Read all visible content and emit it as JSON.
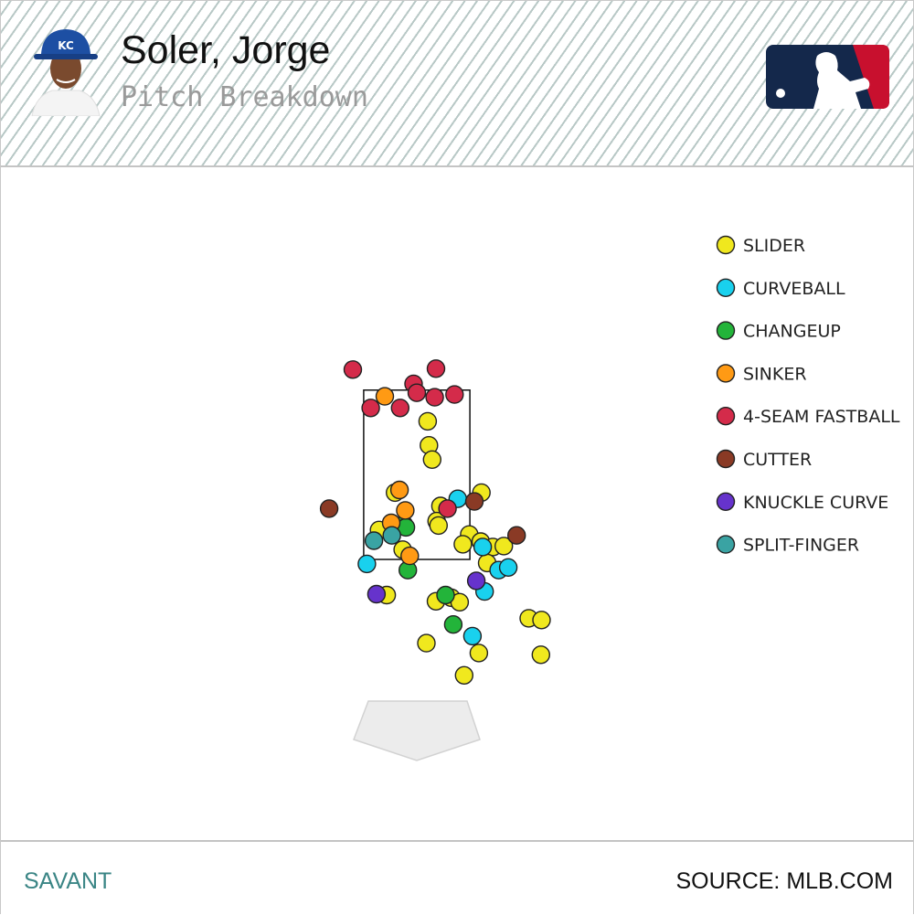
{
  "header": {
    "player_name": "Soler, Jorge",
    "subtitle": "Pitch Breakdown",
    "team_logo_icon": "royals-kc-cap-icon",
    "league_logo_icon": "mlb-logo-icon"
  },
  "footer": {
    "left": "SAVANT",
    "right": "SOURCE: MLB.COM"
  },
  "colors": {
    "header_stripe": "#b8c8c6",
    "savant_teal": "#3a8585",
    "mlb_navy": "#14284b",
    "mlb_red": "#c8102e",
    "plate_fill": "#ececec"
  },
  "chart_data": {
    "type": "scatter",
    "title": "",
    "xlabel": "",
    "ylabel": "",
    "legend_position": "top-right",
    "xlim": [
      -2.0,
      2.0
    ],
    "ylim": [
      0.0,
      5.0
    ],
    "strike_zone": {
      "x": [
        -0.83,
        0.83
      ],
      "z": [
        1.6,
        3.5
      ]
    },
    "series": [
      {
        "name": "SLIDER",
        "color": "#f0e81e",
        "points": [
          [
            0.17,
            3.15
          ],
          [
            0.19,
            2.88
          ],
          [
            0.24,
            2.72
          ],
          [
            -0.34,
            2.35
          ],
          [
            1.01,
            2.35
          ],
          [
            0.37,
            2.2
          ],
          [
            0.31,
            2.03
          ],
          [
            0.34,
            1.98
          ],
          [
            -0.59,
            1.93
          ],
          [
            -0.22,
            1.71
          ],
          [
            0.82,
            1.88
          ],
          [
            0.72,
            1.77
          ],
          [
            1.0,
            1.8
          ],
          [
            1.19,
            1.74
          ],
          [
            1.36,
            1.75
          ],
          [
            1.1,
            1.56
          ],
          [
            -0.47,
            1.2
          ],
          [
            0.3,
            1.13
          ],
          [
            0.54,
            1.17
          ],
          [
            0.67,
            1.12
          ],
          [
            1.75,
            0.94
          ],
          [
            1.95,
            0.92
          ],
          [
            0.15,
            0.66
          ],
          [
            0.97,
            0.55
          ],
          [
            1.94,
            0.53
          ],
          [
            0.74,
            0.3
          ]
        ]
      },
      {
        "name": "CURVEBALL",
        "color": "#19d1ee",
        "points": [
          [
            0.64,
            2.28
          ],
          [
            -0.78,
            1.55
          ],
          [
            1.03,
            1.74
          ],
          [
            1.28,
            1.48
          ],
          [
            1.43,
            1.51
          ],
          [
            1.06,
            1.24
          ],
          [
            0.87,
            0.74
          ]
        ]
      },
      {
        "name": "CHANGEUP",
        "color": "#23b43a",
        "points": [
          [
            -0.2,
            1.99
          ],
          [
            -0.17,
            1.96
          ],
          [
            -0.14,
            1.48
          ],
          [
            0.45,
            1.2
          ],
          [
            0.57,
            0.87
          ]
        ]
      },
      {
        "name": "SINKER",
        "color": "#ff9a14",
        "points": [
          [
            -0.5,
            3.43
          ],
          [
            -0.27,
            2.38
          ],
          [
            -0.18,
            2.15
          ],
          [
            -0.4,
            2.01
          ],
          [
            -0.11,
            1.64
          ]
        ]
      },
      {
        "name": "4-SEAM FASTBALL",
        "color": "#d42b4a",
        "points": [
          [
            -1.0,
            3.73
          ],
          [
            0.3,
            3.74
          ],
          [
            -0.05,
            3.57
          ],
          [
            0.0,
            3.47
          ],
          [
            0.28,
            3.42
          ],
          [
            0.59,
            3.45
          ],
          [
            -0.72,
            3.3
          ],
          [
            -0.26,
            3.3
          ],
          [
            0.48,
            2.17
          ]
        ]
      },
      {
        "name": "CUTTER",
        "color": "#8a3a25",
        "points": [
          [
            -1.37,
            2.17
          ],
          [
            0.9,
            2.25
          ],
          [
            1.56,
            1.87
          ]
        ]
      },
      {
        "name": "KNUCKLE CURVE",
        "color": "#6633cc",
        "points": [
          [
            0.93,
            1.36
          ],
          [
            -0.63,
            1.21
          ]
        ]
      },
      {
        "name": "SPLIT-FINGER",
        "color": "#3aa3a3",
        "points": [
          [
            -0.39,
            1.87
          ],
          [
            -0.67,
            1.81
          ]
        ]
      }
    ]
  }
}
